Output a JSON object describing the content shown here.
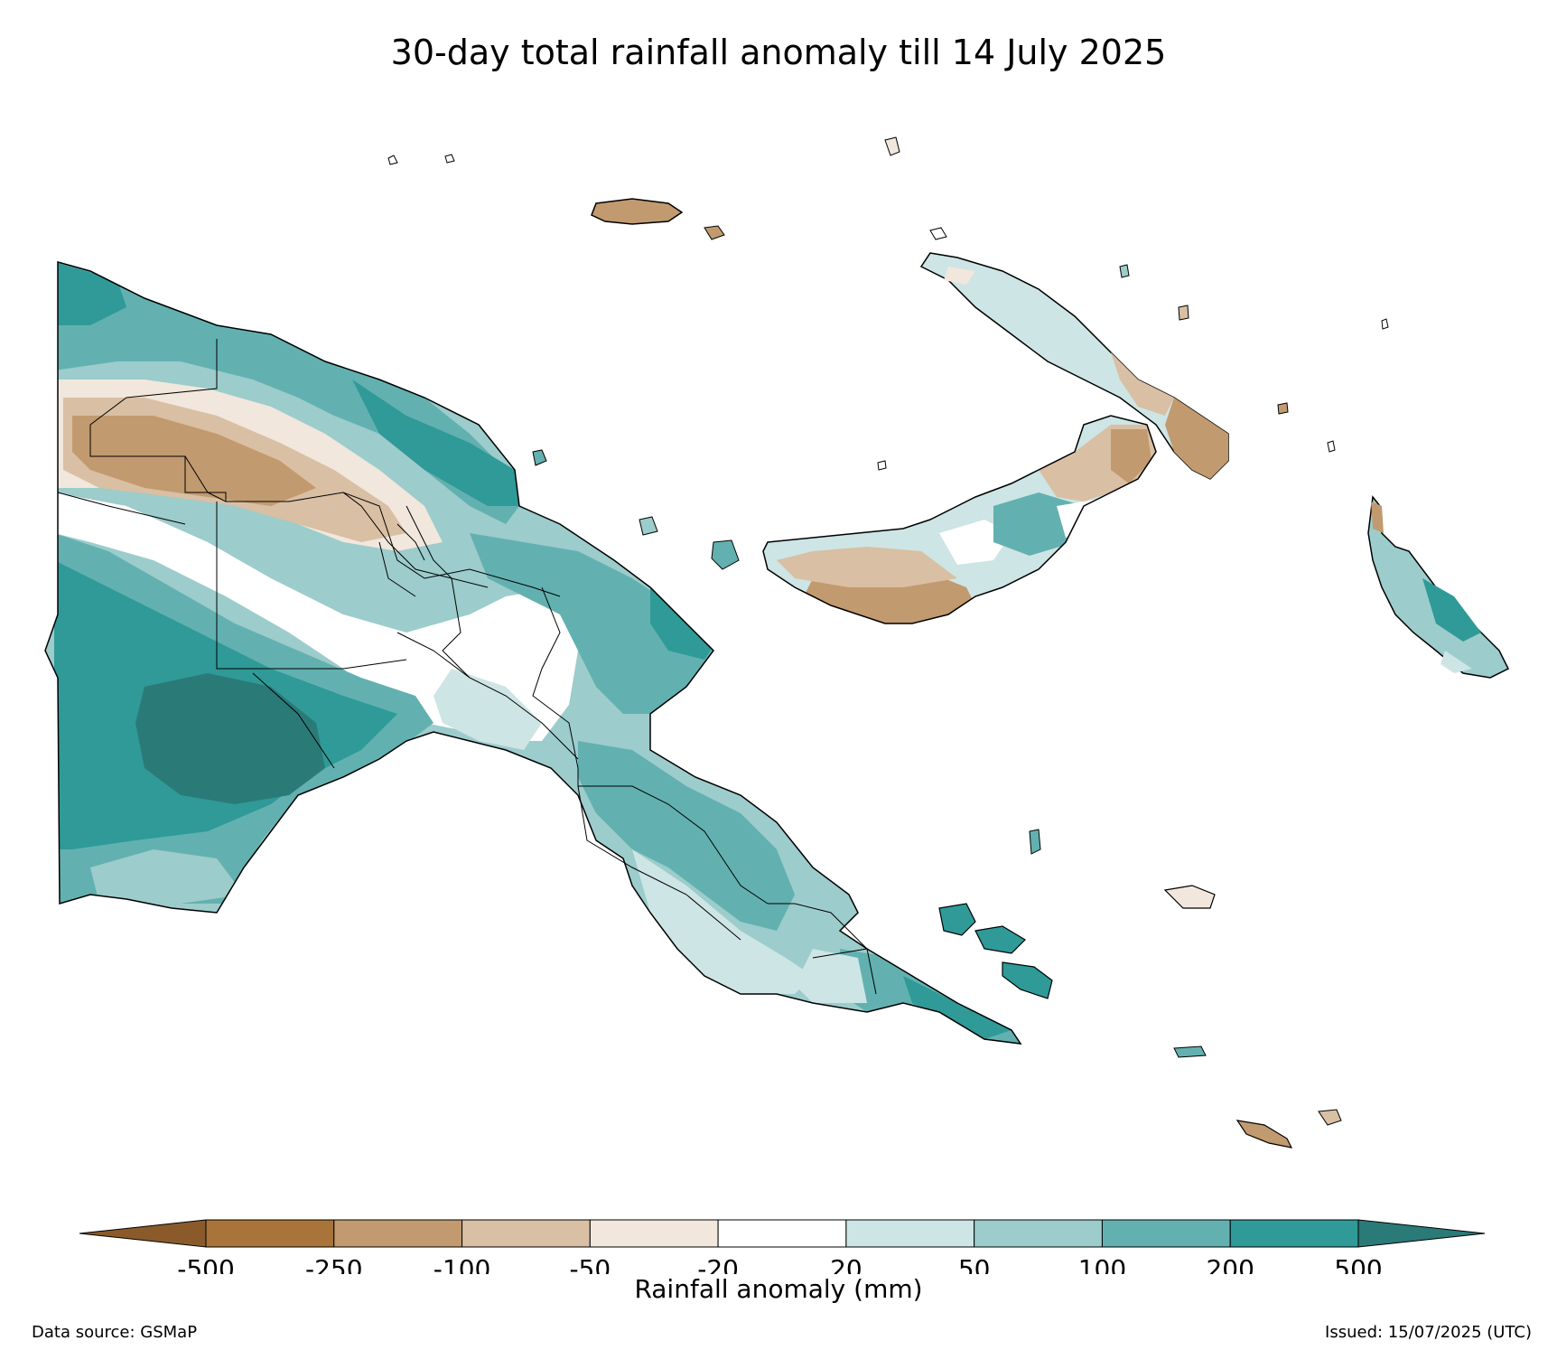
{
  "title": "30-day total rainfall anomaly till 14 July 2025",
  "colorbar": {
    "label": "Rainfall anomaly (mm)",
    "ticks": [
      "-500",
      "-250",
      "-100",
      "-50",
      "-20",
      "20",
      "50",
      "100",
      "200",
      "500"
    ],
    "colors": {
      "below_min": "#8b5a2b",
      "bins": [
        "#a97439",
        "#c29a6f",
        "#d9bfa3",
        "#f1e7dd",
        "#ffffff",
        "#cde5e4",
        "#9ccccb",
        "#62b1b0",
        "#2f9a97"
      ],
      "above_max": "#2a7a78"
    }
  },
  "footer": {
    "source": "Data source: GSMaP",
    "issued": "Issued: 15/07/2025 (UTC)"
  }
}
